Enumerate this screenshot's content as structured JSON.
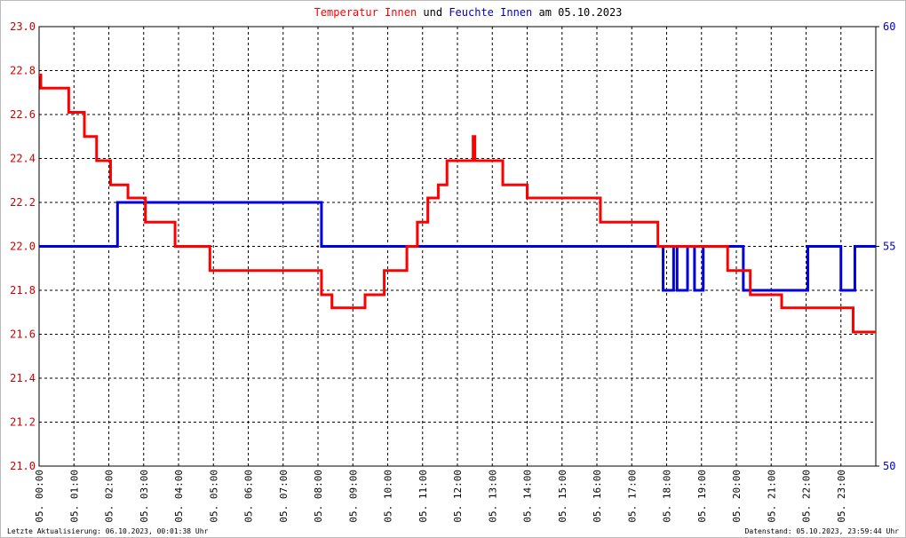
{
  "chart_data": {
    "type": "line",
    "title_segments": [
      "Temperatur Innen",
      "und",
      "Feuchte Innen",
      "am 05.10.2023"
    ],
    "title_colors": [
      "#ff0000",
      "#000000",
      "#0000cc",
      "#000000"
    ],
    "footer_left": "Letzte Aktualisierung: 06.10.2023, 00:01:38 Uhr",
    "footer_right": "Datenstand: 05.10.2023, 23:59:44 Uhr",
    "grid": true,
    "xlim": [
      0,
      24
    ],
    "xticks": [
      {
        "value": 0,
        "label": "05. 00:00"
      },
      {
        "value": 1,
        "label": "05. 01:00"
      },
      {
        "value": 2,
        "label": "05. 02:00"
      },
      {
        "value": 3,
        "label": "05. 03:00"
      },
      {
        "value": 4,
        "label": "05. 04:00"
      },
      {
        "value": 5,
        "label": "05. 05:00"
      },
      {
        "value": 6,
        "label": "05. 06:00"
      },
      {
        "value": 7,
        "label": "05. 07:00"
      },
      {
        "value": 8,
        "label": "05. 08:00"
      },
      {
        "value": 9,
        "label": "05. 09:00"
      },
      {
        "value": 10,
        "label": "05. 10:00"
      },
      {
        "value": 11,
        "label": "05. 11:00"
      },
      {
        "value": 12,
        "label": "05. 12:00"
      },
      {
        "value": 13,
        "label": "05. 13:00"
      },
      {
        "value": 14,
        "label": "05. 14:00"
      },
      {
        "value": 15,
        "label": "05. 15:00"
      },
      {
        "value": 16,
        "label": "05. 16:00"
      },
      {
        "value": 17,
        "label": "05. 17:00"
      },
      {
        "value": 18,
        "label": "05. 18:00"
      },
      {
        "value": 19,
        "label": "05. 19:00"
      },
      {
        "value": 20,
        "label": "05. 20:00"
      },
      {
        "value": 21,
        "label": "05. 21:00"
      },
      {
        "value": 22,
        "label": "05. 22:00"
      },
      {
        "value": 23,
        "label": "05. 23:00"
      }
    ],
    "ylim": [
      21,
      23
    ],
    "yticks": [
      {
        "value": 21,
        "label": "21.0"
      },
      21.2,
      21.4,
      21.6,
      21.8,
      {
        "value": 22,
        "label": "22.0"
      },
      22.2,
      22.4,
      22.6,
      22.8,
      {
        "value": 23,
        "label": "23.0"
      }
    ],
    "y2lim": [
      50,
      60
    ],
    "y2ticks": [
      50,
      55,
      60
    ],
    "series": [
      {
        "name": "Temperatur Innen",
        "color": "#ff0000",
        "x": [
          0,
          0.05,
          0.05,
          0.85,
          0.85,
          1.3,
          1.3,
          1.65,
          1.65,
          2.05,
          2.05,
          2.55,
          2.55,
          3.05,
          3.05,
          3.9,
          3.9,
          4.9,
          4.9,
          8.1,
          8.1,
          8.4,
          8.4,
          9.35,
          9.35,
          9.9,
          9.9,
          10.55,
          10.55,
          10.85,
          10.85,
          11.15,
          11.15,
          11.45,
          11.45,
          11.7,
          11.7,
          12.45,
          12.45,
          12.5,
          12.5,
          13.3,
          13.3,
          14.0,
          14.0,
          16.1,
          16.1,
          17.75,
          17.75,
          19.75,
          19.75,
          20.4,
          20.4,
          21.3,
          21.3,
          23.35,
          23.35,
          24
        ],
        "values": [
          22.78,
          22.78,
          22.72,
          22.72,
          22.61,
          22.61,
          22.5,
          22.5,
          22.39,
          22.39,
          22.28,
          22.28,
          22.22,
          22.22,
          22.11,
          22.11,
          22.0,
          22.0,
          21.89,
          21.89,
          21.78,
          21.78,
          21.72,
          21.72,
          21.78,
          21.78,
          21.89,
          21.89,
          22.0,
          22.0,
          22.11,
          22.11,
          22.22,
          22.22,
          22.28,
          22.28,
          22.39,
          22.39,
          22.5,
          22.5,
          22.39,
          22.39,
          22.28,
          22.28,
          22.22,
          22.22,
          22.11,
          22.11,
          22.0,
          22.0,
          21.89,
          21.89,
          21.78,
          21.78,
          21.72,
          21.72,
          21.61,
          21.61
        ]
      },
      {
        "name": "Feuchte Innen",
        "color": "#0000dd",
        "axis": "y2",
        "x": [
          0,
          2.25,
          2.25,
          8.1,
          8.1,
          17.9,
          17.9,
          18.2,
          18.2,
          18.3,
          18.3,
          18.6,
          18.6,
          18.8,
          18.8,
          19.05,
          19.05,
          20.2,
          20.2,
          22.05,
          22.05,
          23.0,
          23.0,
          23.4,
          23.4,
          24
        ],
        "values": [
          55,
          55,
          56,
          56,
          55,
          55,
          54,
          54,
          55,
          55,
          54,
          54,
          55,
          55,
          54,
          54,
          55,
          55,
          54,
          54,
          55,
          55,
          54,
          54,
          55,
          55
        ]
      }
    ]
  }
}
